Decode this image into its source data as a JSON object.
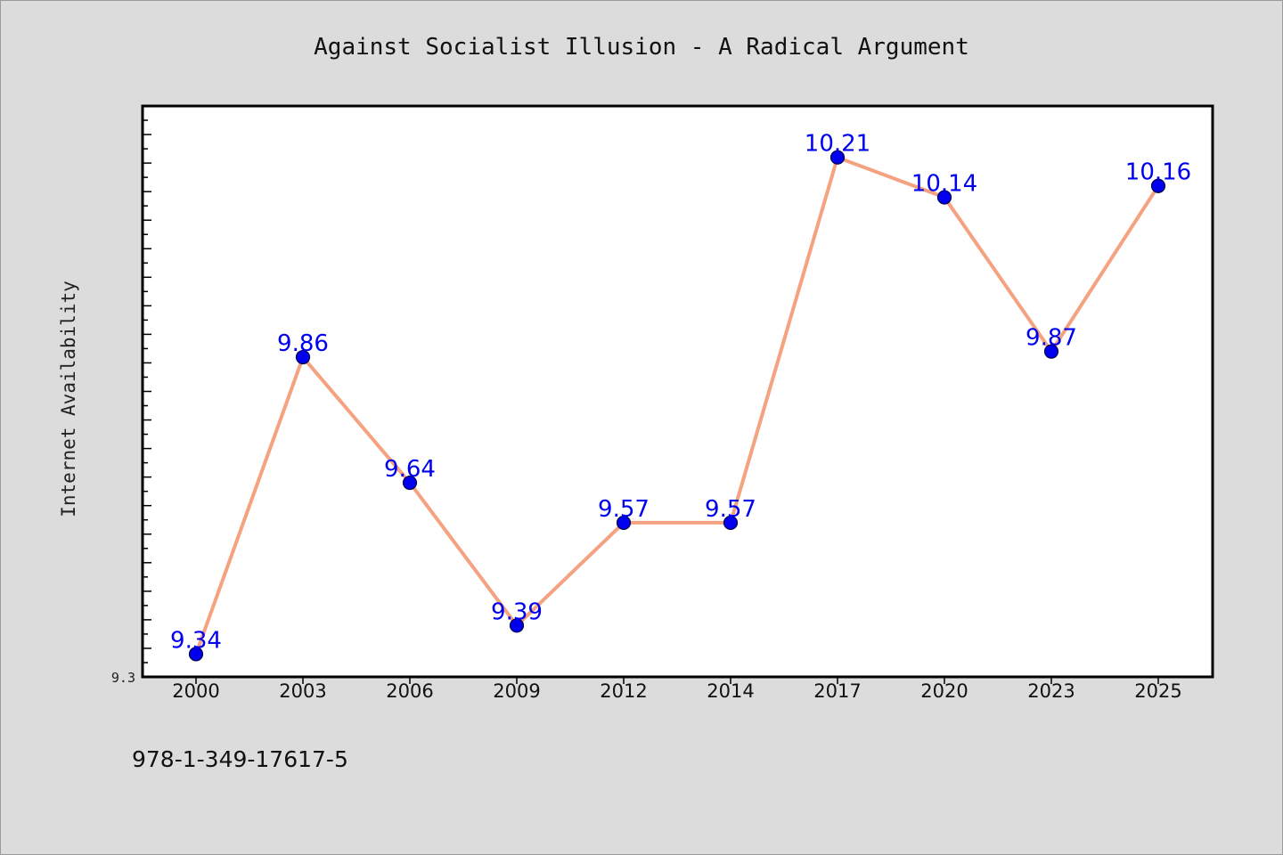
{
  "chart_data": {
    "type": "line",
    "title": "Against Socialist Illusion - A Radical Argument",
    "ylabel": "Internet Availability",
    "xlabel": "",
    "categories": [
      "2000",
      "2003",
      "2006",
      "2009",
      "2012",
      "2014",
      "2017",
      "2020",
      "2023",
      "2025"
    ],
    "series": [
      {
        "values": [
          9.34,
          9.86,
          9.64,
          9.39,
          9.57,
          9.57,
          10.21,
          10.14,
          9.87,
          10.16
        ]
      }
    ],
    "data_labels": [
      "9.34",
      "9.86",
      "9.64",
      "9.39",
      "9.57",
      "9.57",
      "10.21",
      "10.14",
      "9.87",
      "10.16"
    ],
    "ylim": [
      9.3,
      10.3
    ],
    "yticks": [
      "9.3"
    ],
    "grid": false,
    "legend": "none",
    "colors": {
      "line": "#f4a27f",
      "marker": "#0000ee",
      "marker_edge": "#000044",
      "data_label": "#0000ee",
      "background": "#dcdcdc",
      "plot_background": "#ffffff"
    }
  },
  "footer": {
    "isbn": "978-1-349-17617-5"
  }
}
